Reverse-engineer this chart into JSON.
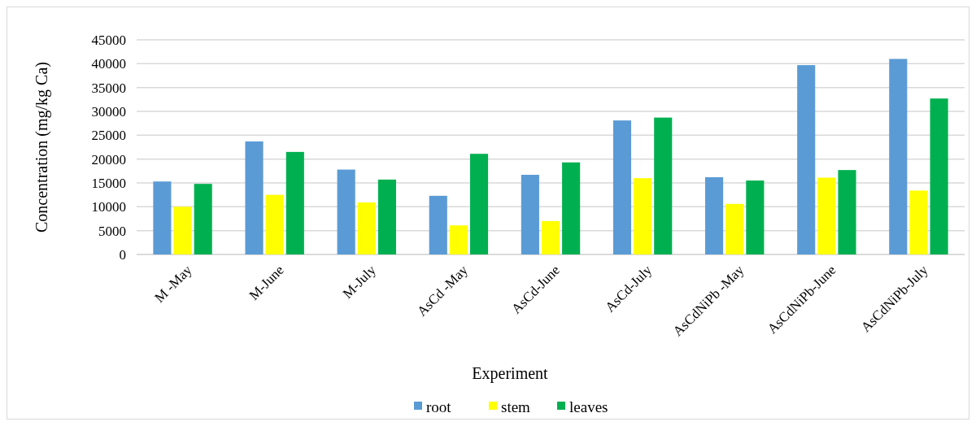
{
  "chart_data": {
    "type": "bar",
    "xlabel": "Experiment",
    "ylabel": "Concentration (mg/kg Ca)",
    "categories": [
      "M -May",
      "M-June",
      "M-July",
      "AsCd -May",
      "AsCd-June",
      "AsCd-July",
      "AsCdNiPb -May",
      "AsCdNiPb-June",
      "AsCdNiPb-July"
    ],
    "series": [
      {
        "name": "root",
        "color": "#5b9bd5",
        "values": [
          15300,
          23700,
          17800,
          12300,
          16700,
          28100,
          16200,
          39700,
          41000
        ]
      },
      {
        "name": "stem",
        "color": "#ffff00",
        "values": [
          10000,
          12500,
          10900,
          6100,
          7000,
          16000,
          10600,
          16100,
          13400
        ]
      },
      {
        "name": "leaves",
        "color": "#00b050",
        "values": [
          14800,
          21500,
          15700,
          21100,
          19300,
          28700,
          15500,
          17700,
          32700
        ]
      }
    ],
    "ylim": [
      0,
      45000
    ],
    "yticks": [
      0,
      5000,
      10000,
      15000,
      20000,
      25000,
      30000,
      35000,
      40000,
      45000
    ],
    "grid": "y",
    "legend": "bottom"
  }
}
